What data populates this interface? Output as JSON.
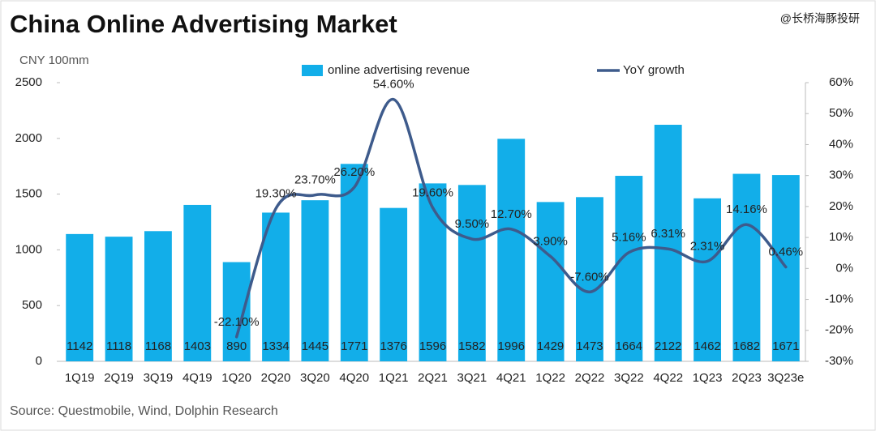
{
  "chart_data": {
    "type": "bar",
    "title": "China Online Advertising Market",
    "unit_label": "CNY 100mm",
    "source": "Source:  Questmobile, Wind, Dolphin Research",
    "watermark": "@长桥海豚投研",
    "categories": [
      "1Q19",
      "2Q19",
      "3Q19",
      "4Q19",
      "1Q20",
      "2Q20",
      "3Q20",
      "4Q20",
      "1Q21",
      "2Q21",
      "3Q21",
      "4Q21",
      "1Q22",
      "2Q22",
      "3Q22",
      "4Q22",
      "1Q23",
      "2Q23",
      "3Q23e"
    ],
    "series": [
      {
        "name": "online advertising revenue",
        "color": "#12aee9",
        "type": "bar",
        "values": [
          1142,
          1118,
          1168,
          1403,
          890,
          1334,
          1445,
          1771,
          1376,
          1596,
          1582,
          1996,
          1429,
          1473,
          1664,
          2122,
          1462,
          1682,
          1671
        ]
      },
      {
        "name": "YoY growth",
        "color": "#3e5b8c",
        "type": "line",
        "axis": "y2",
        "values": [
          null,
          null,
          null,
          null,
          -22.1,
          19.3,
          23.7,
          26.2,
          54.6,
          19.6,
          9.5,
          12.7,
          3.9,
          -7.6,
          5.16,
          6.31,
          2.31,
          14.16,
          0.46
        ],
        "value_labels": [
          null,
          null,
          null,
          null,
          "-22.10%",
          "19.30%",
          "23.70%",
          "26.20%",
          "54.60%",
          "19.60%",
          "9.50%",
          "12.70%",
          "3.90%",
          "-7.60%",
          "5.16%",
          "6.31%",
          "2.31%",
          "14.16%",
          "0.46%"
        ]
      }
    ],
    "ylim": [
      0,
      2500
    ],
    "yticks": [
      0,
      500,
      1000,
      1500,
      2000,
      2500
    ],
    "y2lim": [
      -30,
      60
    ],
    "y2ticks": [
      {
        "value": -30,
        "label": "-30%"
      },
      {
        "value": -20,
        "label": "-20%"
      },
      {
        "value": -10,
        "label": "-10%"
      },
      {
        "value": 0,
        "label": "0%"
      },
      {
        "value": 10,
        "label": "10%"
      },
      {
        "value": 20,
        "label": "20%"
      },
      {
        "value": 30,
        "label": "30%"
      },
      {
        "value": 40,
        "label": "40%"
      },
      {
        "value": 50,
        "label": "50%"
      },
      {
        "value": 60,
        "label": "60%"
      }
    ],
    "grid": false
  }
}
